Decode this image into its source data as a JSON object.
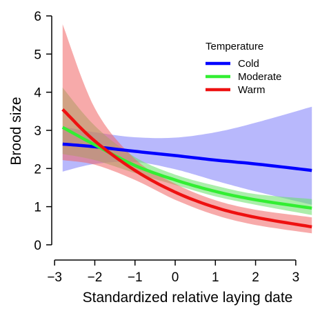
{
  "chart_data": {
    "type": "line",
    "xlabel": "Standardized relative laying date",
    "ylabel": "Brood size",
    "xlim": [
      -2.9,
      3.5
    ],
    "ylim": [
      -0.2,
      6.2
    ],
    "xticks": [
      -3,
      -2,
      -1,
      0,
      1,
      2,
      3
    ],
    "yticks": [
      0,
      1,
      2,
      3,
      4,
      5,
      6
    ],
    "xtick_labels": [
      "−3",
      "−2",
      "−1",
      "0",
      "1",
      "2",
      "3"
    ],
    "ytick_labels": [
      "0",
      "1",
      "2",
      "3",
      "4",
      "5",
      "6"
    ],
    "legend": {
      "title": "Temperature",
      "position": "top-right"
    },
    "series": [
      {
        "name": "Cold",
        "color": "#0000ff",
        "band_color": "#7d7dfa",
        "x": [
          -2.8,
          -2.0,
          -1.0,
          0.0,
          1.0,
          2.0,
          3.4
        ],
        "values": [
          2.64,
          2.57,
          2.45,
          2.34,
          2.22,
          2.12,
          1.95
        ],
        "lower": [
          1.92,
          2.12,
          2.17,
          1.98,
          1.68,
          1.4,
          1.05
        ],
        "upper": [
          3.1,
          2.95,
          2.82,
          2.81,
          2.95,
          3.2,
          3.62
        ]
      },
      {
        "name": "Moderate",
        "color": "#33ee33",
        "band_color": "#66e066",
        "x": [
          -2.8,
          -2.0,
          -1.0,
          0.0,
          1.0,
          2.0,
          3.4
        ],
        "values": [
          3.08,
          2.62,
          2.08,
          1.7,
          1.4,
          1.18,
          0.96
        ],
        "lower": [
          2.38,
          2.22,
          1.88,
          1.57,
          1.27,
          1.05,
          0.78
        ],
        "upper": [
          4.12,
          3.12,
          2.3,
          1.84,
          1.55,
          1.33,
          1.2
        ]
      },
      {
        "name": "Warm",
        "color": "#ee1111",
        "band_color": "#f06565",
        "x": [
          -2.8,
          -2.0,
          -1.0,
          0.0,
          1.0,
          2.0,
          3.4
        ],
        "values": [
          3.55,
          2.72,
          1.95,
          1.38,
          0.98,
          0.72,
          0.47
        ],
        "lower": [
          2.22,
          2.1,
          1.7,
          1.18,
          0.78,
          0.52,
          0.3
        ],
        "upper": [
          5.78,
          3.58,
          2.25,
          1.6,
          1.17,
          0.92,
          0.72
        ]
      }
    ]
  }
}
